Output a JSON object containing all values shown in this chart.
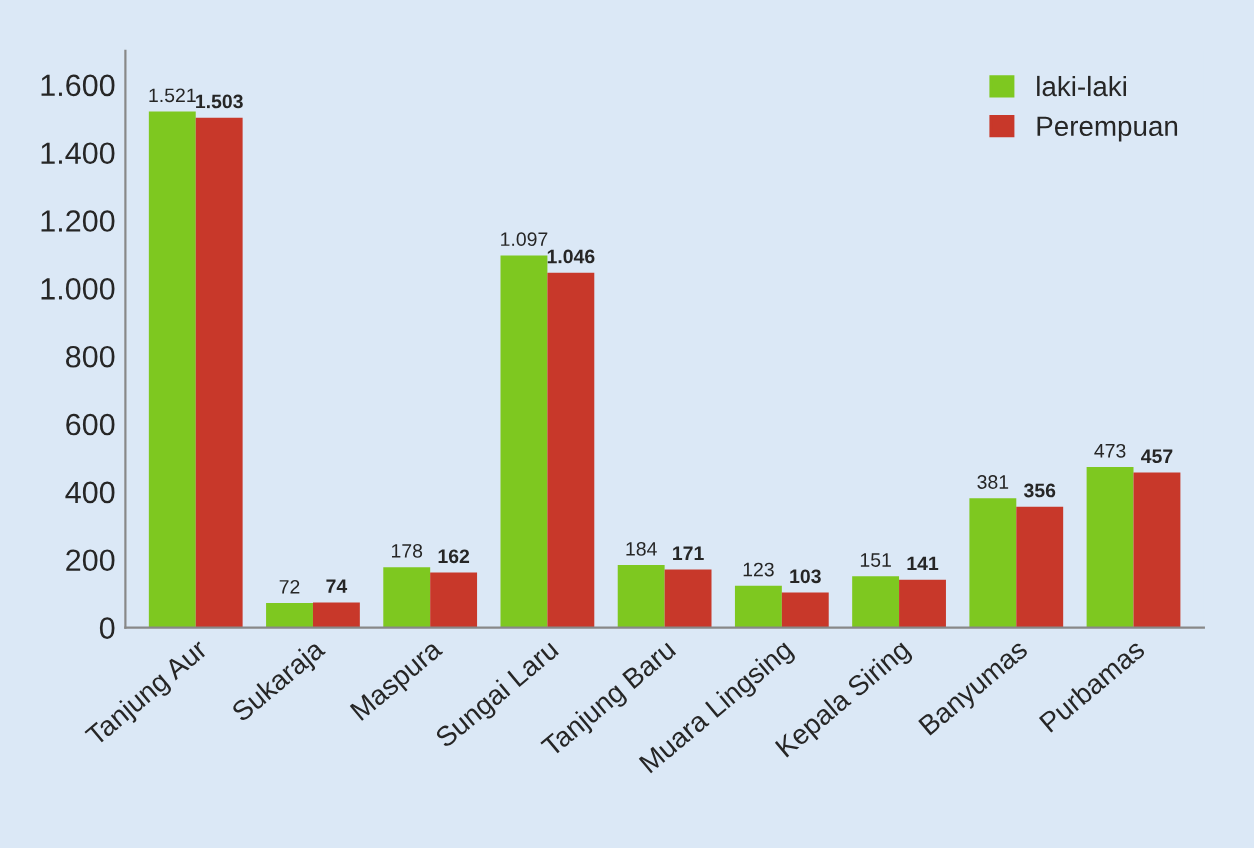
{
  "chart_data": {
    "type": "bar",
    "categories": [
      "Tanjung Aur",
      "Sukaraja",
      "Maspura",
      "Sungai Laru",
      "Tanjung Baru",
      "Muara Lingsing",
      "Kepala Siring",
      "Banyumas",
      "Purbamas"
    ],
    "series": [
      {
        "name": "laki-laki",
        "color": "#7ec820",
        "values": [
          1521,
          72,
          178,
          1097,
          184,
          123,
          151,
          381,
          473
        ],
        "value_labels": [
          "1.521",
          "72",
          "178",
          "1.097",
          "184",
          "123",
          "151",
          "381",
          "473"
        ]
      },
      {
        "name": "Perempuan",
        "color": "#c8382a",
        "values": [
          1503,
          74,
          162,
          1046,
          171,
          103,
          141,
          356,
          457
        ],
        "value_labels": [
          "1.503",
          "74",
          "162",
          "1.046",
          "171",
          "103",
          "141",
          "356",
          "457"
        ]
      }
    ],
    "ylim": [
      0,
      1700
    ],
    "yticks": [
      0,
      200,
      400,
      600,
      800,
      {
        "value": 1000,
        "label": "1.000"
      },
      {
        "value": 1200,
        "label": "1.200"
      },
      {
        "value": 1400,
        "label": "1.400"
      },
      {
        "value": 1600,
        "label": "1.600"
      }
    ],
    "grid": false,
    "legend": "top right"
  }
}
